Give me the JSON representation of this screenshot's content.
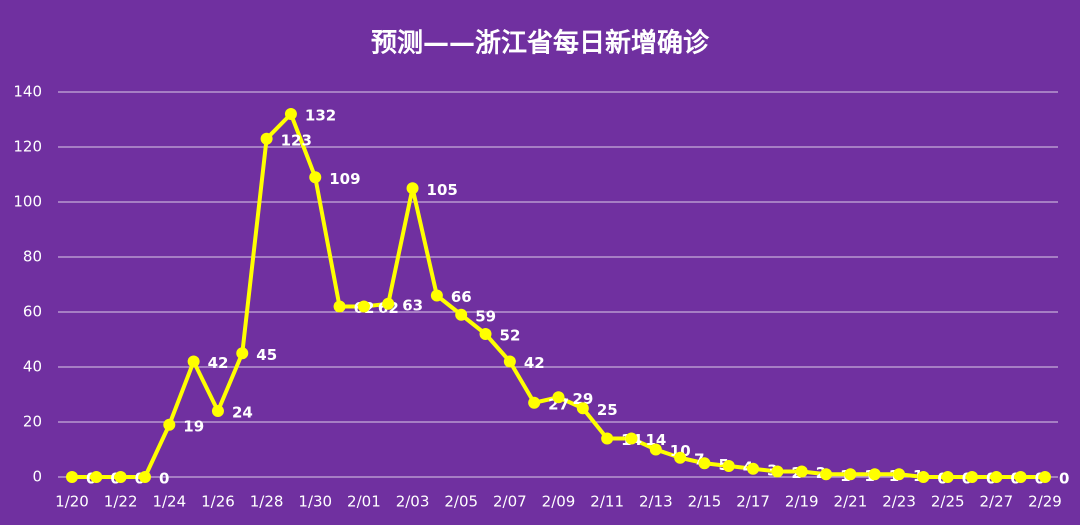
{
  "chart_data": {
    "type": "line",
    "title": "预测——浙江省每日新增确诊",
    "categories": [
      "1/20",
      null,
      "1/22",
      null,
      "1/24",
      null,
      "1/26",
      null,
      "1/28",
      null,
      "1/30",
      null,
      "2/01",
      null,
      "2/03",
      null,
      "2/05",
      null,
      "2/07",
      null,
      "2/09",
      null,
      "2/11",
      null,
      "2/13",
      null,
      "2/15",
      null,
      "2/17",
      null,
      "2/19",
      null,
      "2/21",
      null,
      "2/23",
      null,
      "2/25",
      null,
      "2/27",
      null,
      "2/29"
    ],
    "series": [
      {
        "color": "#ffff00",
        "values": [
          0,
          0,
          0,
          0,
          19,
          42,
          24,
          45,
          123,
          132,
          109,
          62,
          62,
          63,
          105,
          66,
          59,
          52,
          42,
          27,
          29,
          25,
          14,
          14,
          10,
          7,
          5,
          4,
          3,
          2,
          2,
          1,
          1,
          1,
          1,
          0,
          0,
          0,
          0,
          0,
          0
        ]
      }
    ],
    "ylim": [
      0,
      140
    ],
    "yticks": [
      0,
      20,
      40,
      60,
      80,
      100,
      120,
      140
    ],
    "grid": true
  }
}
